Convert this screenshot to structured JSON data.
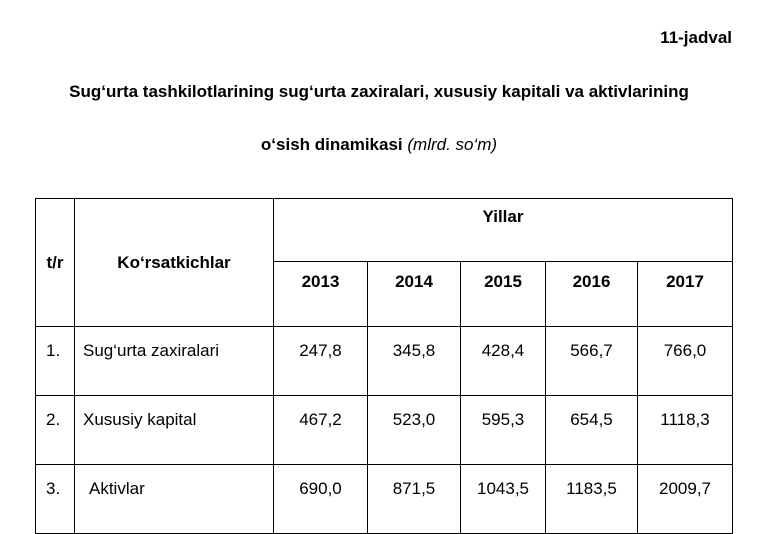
{
  "table_number": "11-jadval",
  "title": {
    "line1": "Sug‘urta tashkilotlarining sug‘urta zaxiralari, xususiy kapitali va aktivlarining",
    "line2": "o‘sish dinamikasi",
    "unit": "(mlrd. so‘m)"
  },
  "table": {
    "col_num": "t/r",
    "col_name": "Ko‘rsatkichlar",
    "col_group": "Yillar",
    "years": [
      "2013",
      "2014",
      "2015",
      "2016",
      "2017"
    ],
    "rows": [
      {
        "num": "1.",
        "name": "Sug‘urta zaxiralari",
        "values": [
          "247,8",
          "345,8",
          "428,4",
          "566,7",
          "766,0"
        ]
      },
      {
        "num": "2.",
        "name": "Xususiy kapital",
        "values": [
          "467,2",
          "523,0",
          "595,3",
          "654,5",
          "1118,3"
        ]
      },
      {
        "num": "3.",
        "name": " Aktivlar",
        "values": [
          "690,0",
          "871,5",
          "1043,5",
          "1183,5",
          "2009,7"
        ]
      }
    ]
  }
}
